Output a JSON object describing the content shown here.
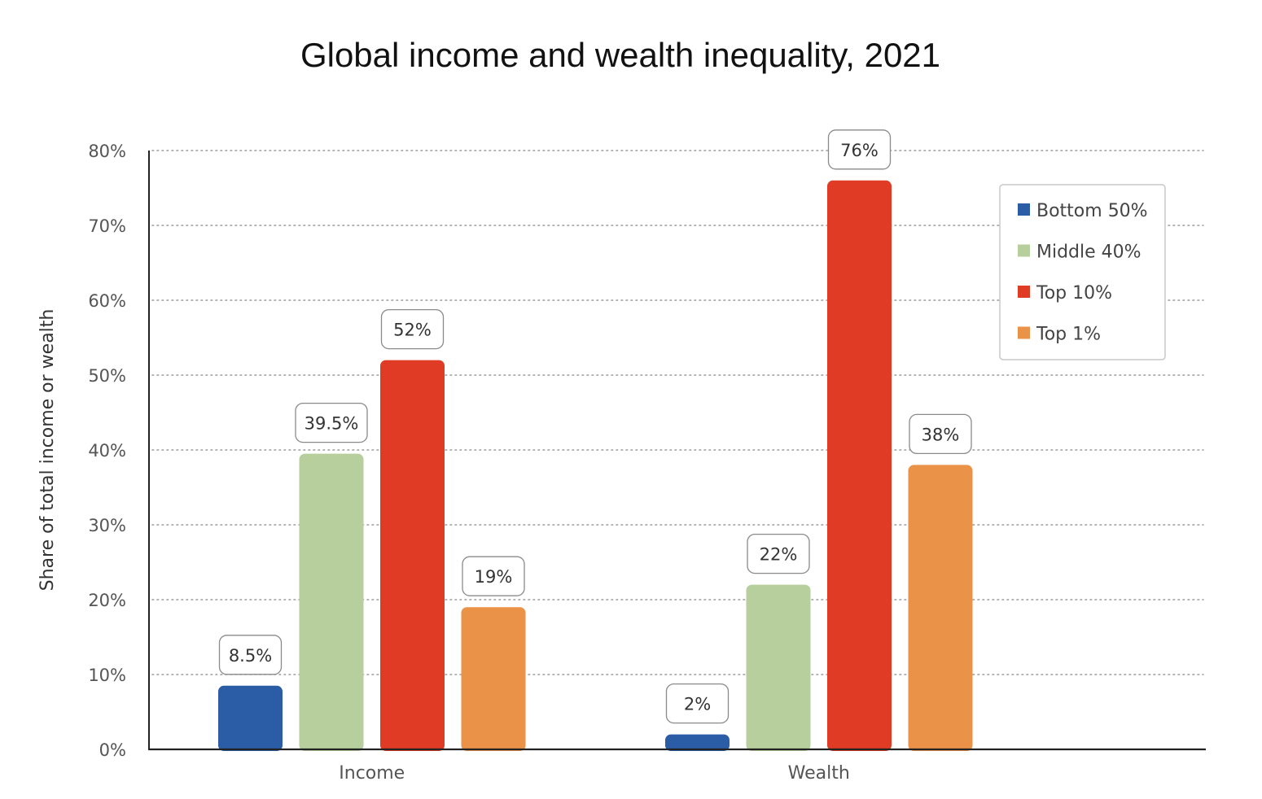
{
  "chart_data": {
    "type": "bar",
    "title": "Global income and wealth inequality, 2021",
    "xlabel": "",
    "ylabel": "Share of total income or wealth",
    "categories": [
      "Income",
      "Wealth"
    ],
    "ylim": [
      0,
      80
    ],
    "yticks": [
      "0%",
      "10%",
      "20%",
      "30%",
      "40%",
      "50%",
      "60%",
      "70%",
      "80%"
    ],
    "grid": true,
    "legend": "top-right",
    "series": [
      {
        "name": "Bottom 50%",
        "color": "#2a5da6",
        "values": [
          8.5,
          2
        ],
        "labels": [
          "8.5%",
          "2%"
        ]
      },
      {
        "name": "Middle 40%",
        "color": "#b6cf9c",
        "values": [
          39.5,
          22
        ],
        "labels": [
          "39.5%",
          "22%"
        ]
      },
      {
        "name": "Top 10%",
        "color": "#df3b25",
        "values": [
          52,
          76
        ],
        "labels": [
          "52%",
          "76%"
        ]
      },
      {
        "name": "Top 1%",
        "color": "#eb9249",
        "values": [
          19,
          38
        ],
        "labels": [
          "19%",
          "38%"
        ]
      }
    ]
  }
}
